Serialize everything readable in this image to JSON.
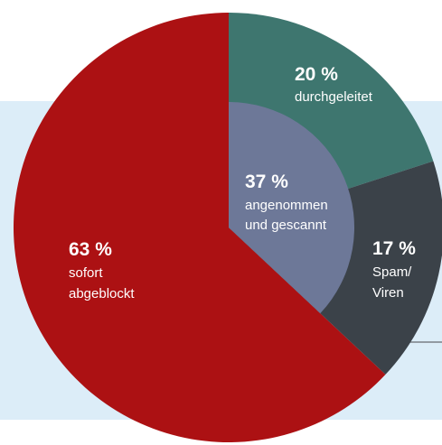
{
  "colors": {
    "background_panel": "#dcedf8",
    "panel_rule": "#7a7f86"
  },
  "chart_data": [
    {
      "type": "pie",
      "title": "",
      "slices": [
        {
          "value": 63,
          "label_value": "63 %",
          "label": [
            "sofort",
            "abgeblockt"
          ],
          "color": "#ac1113"
        },
        {
          "value": 20,
          "label_value": "20 %",
          "label": [
            "durchgeleitet"
          ],
          "color": "#3e766f"
        },
        {
          "value": 17,
          "label_value": "17 %",
          "label": [
            "Spam/",
            "Viren"
          ],
          "color": "#3b4249"
        }
      ]
    },
    {
      "type": "pie",
      "title": "",
      "note": "inner sector spanning the non-blocked share of the outer pie",
      "slices": [
        {
          "value": 37,
          "label_value": "37 %",
          "label": [
            "angenommen",
            "und gescannt"
          ],
          "color": "#6d7898"
        }
      ]
    }
  ]
}
